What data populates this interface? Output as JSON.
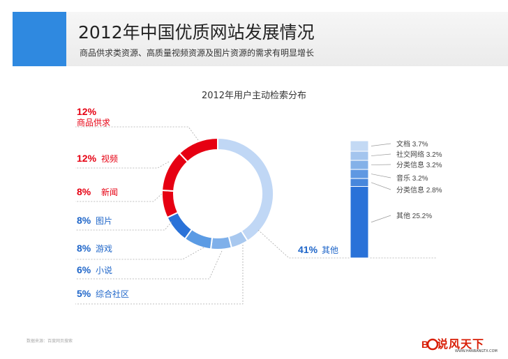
{
  "header": {
    "title": "2012年中国优质网站发展情况",
    "subtitle": "商品供求类资源、高质量视频资源及图片资源的需求有明显增长"
  },
  "footer": {
    "source": "数据来源：百度网页搜索"
  },
  "logo": {
    "text": "说风天下",
    "url": "WWW.HANBANGTX.COM"
  },
  "colors": {
    "red": "#e60012",
    "blue_dark": "#2a6fd6",
    "blue_mid": "#4a90e2",
    "blue_light": "#c0d7f5",
    "accent": "#2f89e0"
  },
  "chart_data": [
    {
      "type": "pie",
      "title": "2012年用户主动检索分布",
      "donut": true,
      "slices": [
        {
          "label": "其他",
          "value": 41,
          "value_label": "41%",
          "color": "#c0d7f5"
        },
        {
          "label": "综合社区",
          "value": 5,
          "value_label": "5%",
          "color": "#a8c8ef"
        },
        {
          "label": "小说",
          "value": 6,
          "value_label": "6%",
          "color": "#7fb0ea"
        },
        {
          "label": "游戏",
          "value": 8,
          "value_label": "8%",
          "color": "#5b9be4"
        },
        {
          "label": "图片",
          "value": 8,
          "value_label": "8%",
          "color": "#2a72d8"
        },
        {
          "label": "新闻",
          "value": 8,
          "value_label": "8%",
          "color": "#e60012"
        },
        {
          "label": "视频",
          "value": 12,
          "value_label": "12%",
          "color": "#e60012"
        },
        {
          "label": "商品供求",
          "value": 12,
          "value_label": "12%",
          "color": "#e60012"
        }
      ]
    },
    {
      "type": "bar",
      "stacked": true,
      "segments": [
        {
          "label": "文档",
          "value": 3.7,
          "value_label": "3.7%",
          "color": "#c3d9f4"
        },
        {
          "label": "社交网络",
          "value": 3.2,
          "value_label": "3.2%",
          "color": "#a4c5ee"
        },
        {
          "label": "分类信息",
          "value": 3.2,
          "value_label": "3.2%",
          "color": "#84b1e8"
        },
        {
          "label": "音乐",
          "value": 3.2,
          "value_label": "3.2%",
          "color": "#5f98e2"
        },
        {
          "label": "分类信息",
          "value": 2.8,
          "value_label": "2.8%",
          "color": "#4787dc"
        },
        {
          "label": "其他",
          "value": 25.2,
          "value_label": "25.2%",
          "color": "#2a72d8"
        }
      ]
    }
  ]
}
